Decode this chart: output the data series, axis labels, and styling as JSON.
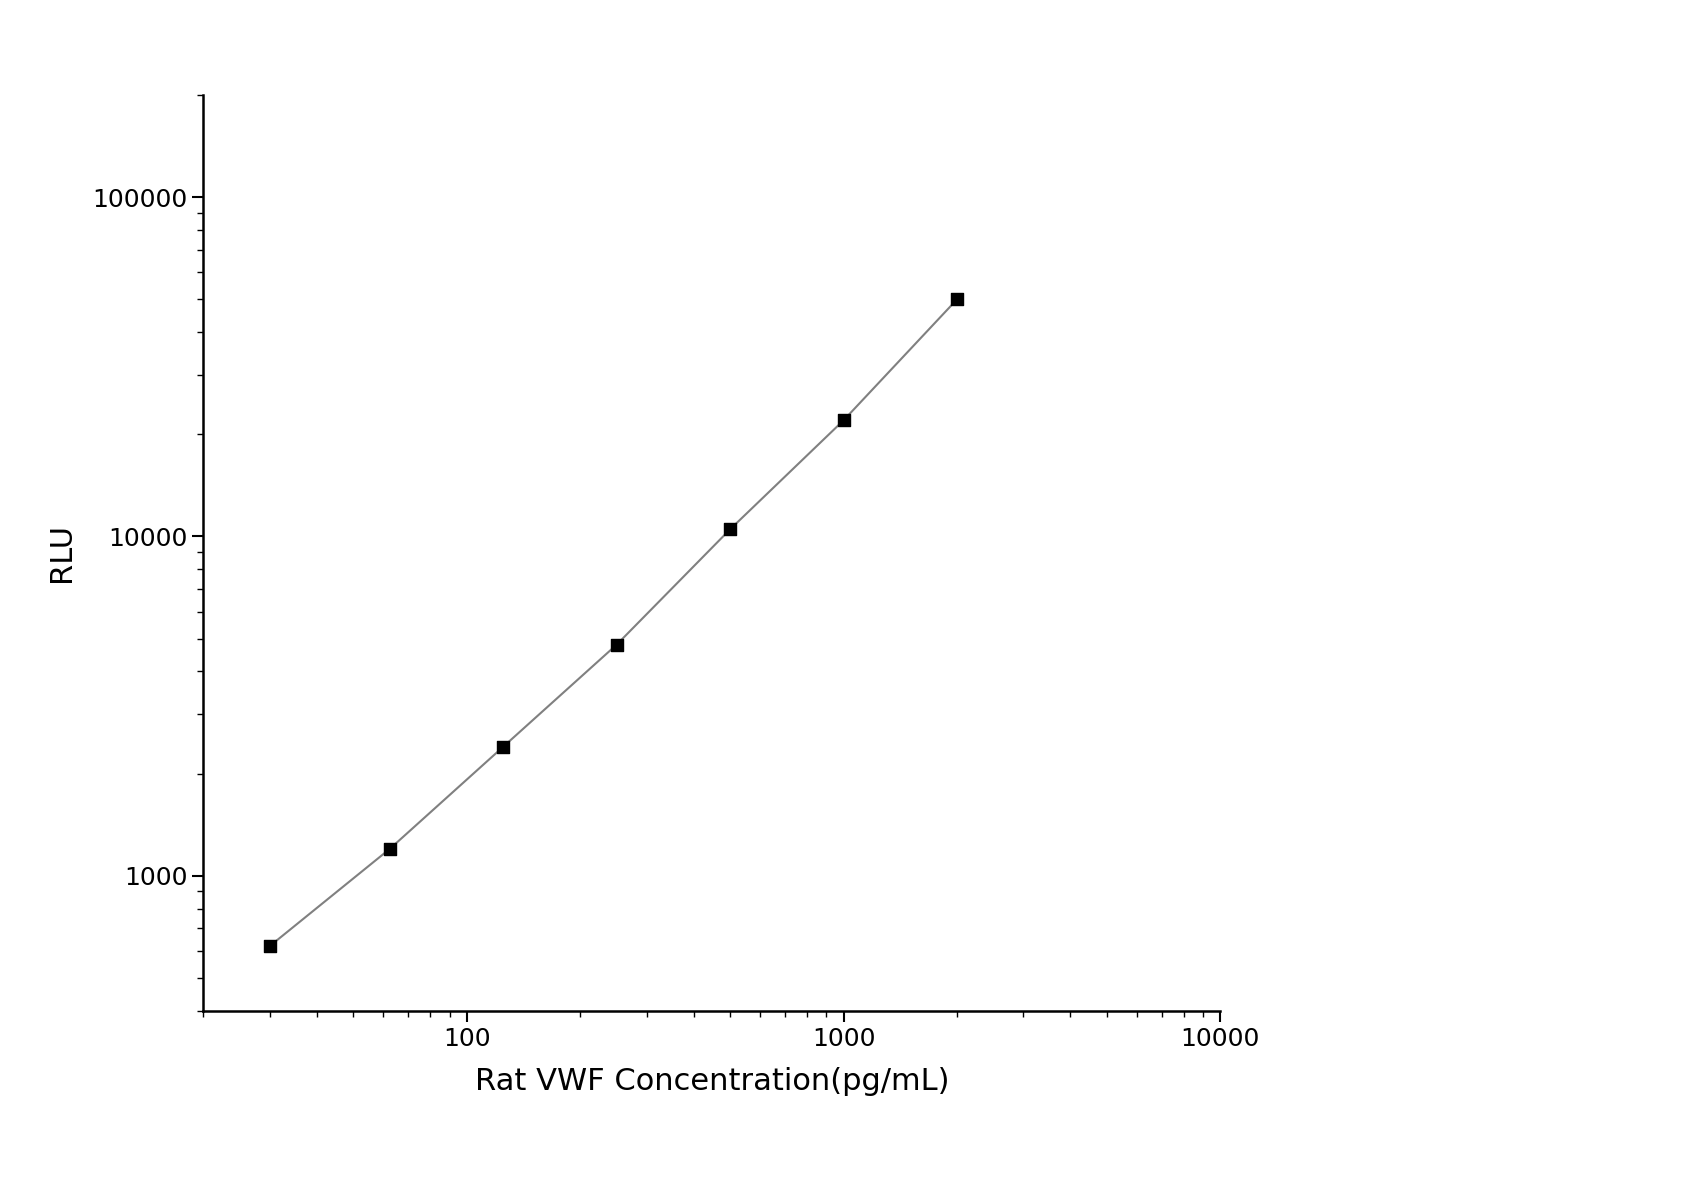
{
  "x_values": [
    30,
    62.5,
    125,
    250,
    500,
    1000,
    2000
  ],
  "y_values": [
    620,
    1200,
    2400,
    4800,
    10500,
    22000,
    50000
  ],
  "xlabel": "Rat VWF Concentration(pg/mL)",
  "ylabel": "RLU",
  "xlim": [
    20,
    10000
  ],
  "ylim": [
    400,
    200000
  ],
  "marker_color": "#000000",
  "line_color": "#808080",
  "marker_size": 9,
  "line_style": "-",
  "xlabel_fontsize": 22,
  "ylabel_fontsize": 22,
  "tick_fontsize": 18,
  "background_color": "#ffffff"
}
